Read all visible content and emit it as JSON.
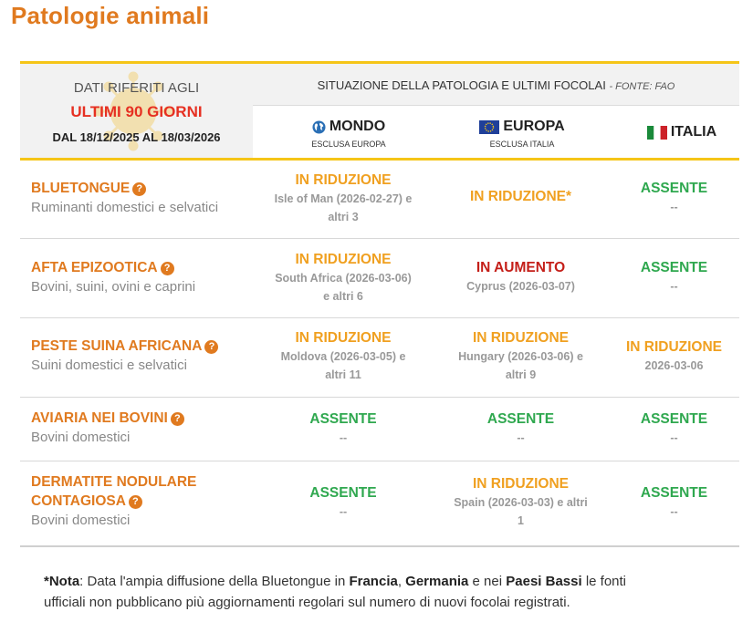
{
  "page_title": "Patologie animali",
  "header": {
    "line1": "DATI RIFERITI AGLI",
    "line2": "ULTIMI 90 GIORNI",
    "line3": "DAL 18/12/2025 AL 18/03/2026",
    "situation": "SITUAZIONE DELLA PATOLOGIA E ULTIMI FOCOLAI",
    "source": "- FONTE: FAO",
    "regions": {
      "mondo": {
        "name": "MONDO",
        "sub": "ESCLUSA EUROPA"
      },
      "europa": {
        "name": "EUROPA",
        "sub": "ESCLUSA ITALIA"
      },
      "italia": {
        "name": "ITALIA"
      }
    }
  },
  "rows": [
    {
      "name": "BLUETONGUE",
      "sub": "Ruminanti domestici e selvatici",
      "mondo": {
        "status": "IN RIDUZIONE",
        "d1": "Isle of Man (2026-02-27) e",
        "d2": "altri 3"
      },
      "europa": {
        "status": "IN RIDUZIONE*",
        "d1": "",
        "d2": ""
      },
      "italia": {
        "status": "ASSENTE",
        "d1": "--"
      }
    },
    {
      "name": "AFTA EPIZOOTICA",
      "sub": "Bovini, suini, ovini e caprini",
      "mondo": {
        "status": "IN RIDUZIONE",
        "d1": "South Africa (2026-03-06)",
        "d2": "e altri 6"
      },
      "europa": {
        "status": "IN AUMENTO",
        "d1": "Cyprus (2026-03-07)",
        "d2": ""
      },
      "italia": {
        "status": "ASSENTE",
        "d1": "--"
      }
    },
    {
      "name": "PESTE SUINA AFRICANA",
      "sub": "Suini domestici e selvatici",
      "mondo": {
        "status": "IN RIDUZIONE",
        "d1": "Moldova (2026-03-05) e",
        "d2": "altri 11"
      },
      "europa": {
        "status": "IN RIDUZIONE",
        "d1": "Hungary (2026-03-06) e",
        "d2": "altri 9"
      },
      "italia": {
        "status": "IN RIDUZIONE",
        "d1": "2026-03-06"
      }
    },
    {
      "name": "AVIARIA NEI BOVINI",
      "sub": "Bovini domestici",
      "mondo": {
        "status": "ASSENTE",
        "d1": "--",
        "d2": ""
      },
      "europa": {
        "status": "ASSENTE",
        "d1": "--",
        "d2": ""
      },
      "italia": {
        "status": "ASSENTE",
        "d1": "--"
      }
    },
    {
      "name1": "DERMATITE NODULARE",
      "name2": "CONTAGIOSA",
      "sub": "Bovini domestici",
      "mondo": {
        "status": "ASSENTE",
        "d1": "--",
        "d2": ""
      },
      "europa": {
        "status": "IN RIDUZIONE",
        "d1": "Spain (2026-03-03) e altri",
        "d2": "1"
      },
      "italia": {
        "status": "ASSENTE",
        "d1": "--"
      }
    }
  ],
  "note": {
    "label": "*Nota",
    "t1": ": Data l'ampia diffusione della Bluetongue in ",
    "c1": "Francia",
    "t2": ", ",
    "c2": "Germania",
    "t3": " e nei ",
    "c3": "Paesi Bassi",
    "t4": " le fonti",
    "line2": "ufficiali non pubblicano più aggiornamenti regolari sul numero di nuovi focolai registrati."
  },
  "colors": {
    "accent": "#e07a1f",
    "yellow": "#f5c518",
    "reducing": "#f0a020",
    "increasing": "#c41e18",
    "absent": "#2fa84f",
    "red_text": "#e63022"
  },
  "icons": [
    "help-icon",
    "globe-icon",
    "eu-flag-icon",
    "italy-flag-icon",
    "virus-icon"
  ]
}
